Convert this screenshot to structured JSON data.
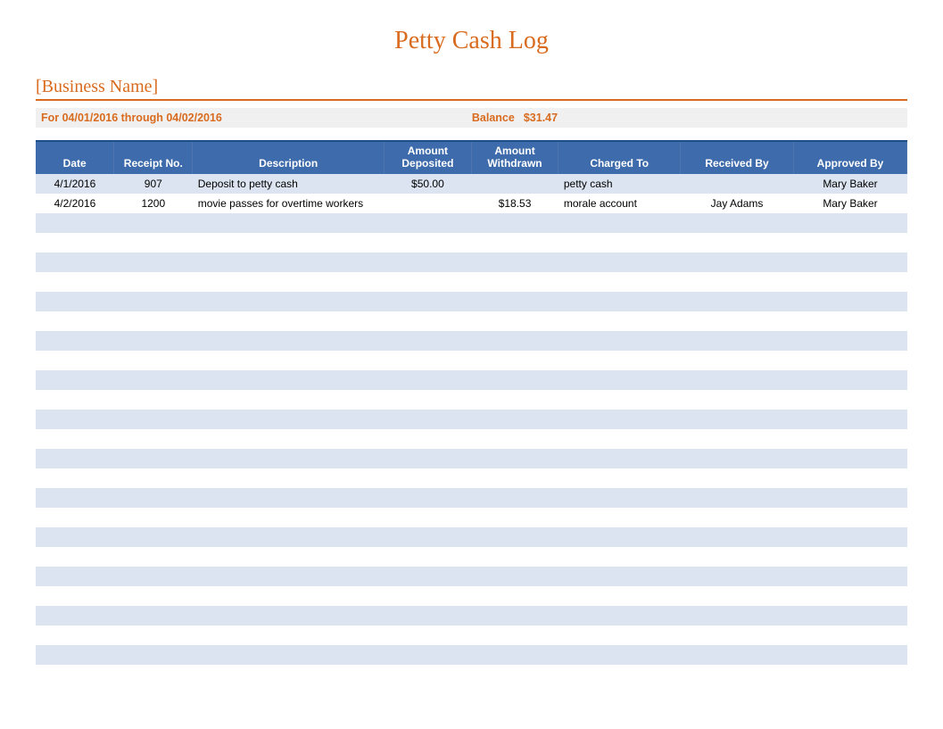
{
  "colors": {
    "orange": "#d96b1f",
    "header_bg": "#3e6bab",
    "header_border_top": "#1f4e89",
    "row_light": "#ffffff",
    "row_alt": "#dbe4f0",
    "period_bg": "#f0f0f0",
    "divider": "#d96b1f"
  },
  "title": "Petty Cash Log",
  "business_name": "[Business Name]",
  "period_text": "For 04/01/2016 through 04/02/2016",
  "balance_label": "Balance",
  "balance_value": "$31.47",
  "columns": {
    "date": "Date",
    "receipt": "Receipt No.",
    "description": "Description",
    "deposited": "Amount Deposited",
    "withdrawn": "Amount Withdrawn",
    "charged": "Charged To",
    "received": "Received By",
    "approved": "Approved By"
  },
  "rows": [
    {
      "date": "4/1/2016",
      "receipt": "907",
      "description": "Deposit to petty cash",
      "deposited": "$50.00",
      "withdrawn": "",
      "charged": "petty cash",
      "received": "",
      "approved": "Mary Baker"
    },
    {
      "date": "4/2/2016",
      "receipt": "1200",
      "description": "movie passes for overtime workers",
      "deposited": "",
      "withdrawn": "$18.53",
      "charged": "morale account",
      "received": "Jay Adams",
      "approved": "Mary Baker"
    },
    {
      "date": "",
      "receipt": "",
      "description": "",
      "deposited": "",
      "withdrawn": "",
      "charged": "",
      "received": "",
      "approved": ""
    },
    {
      "date": "",
      "receipt": "",
      "description": "",
      "deposited": "",
      "withdrawn": "",
      "charged": "",
      "received": "",
      "approved": ""
    },
    {
      "date": "",
      "receipt": "",
      "description": "",
      "deposited": "",
      "withdrawn": "",
      "charged": "",
      "received": "",
      "approved": ""
    },
    {
      "date": "",
      "receipt": "",
      "description": "",
      "deposited": "",
      "withdrawn": "",
      "charged": "",
      "received": "",
      "approved": ""
    },
    {
      "date": "",
      "receipt": "",
      "description": "",
      "deposited": "",
      "withdrawn": "",
      "charged": "",
      "received": "",
      "approved": ""
    },
    {
      "date": "",
      "receipt": "",
      "description": "",
      "deposited": "",
      "withdrawn": "",
      "charged": "",
      "received": "",
      "approved": ""
    },
    {
      "date": "",
      "receipt": "",
      "description": "",
      "deposited": "",
      "withdrawn": "",
      "charged": "",
      "received": "",
      "approved": ""
    },
    {
      "date": "",
      "receipt": "",
      "description": "",
      "deposited": "",
      "withdrawn": "",
      "charged": "",
      "received": "",
      "approved": ""
    },
    {
      "date": "",
      "receipt": "",
      "description": "",
      "deposited": "",
      "withdrawn": "",
      "charged": "",
      "received": "",
      "approved": ""
    },
    {
      "date": "",
      "receipt": "",
      "description": "",
      "deposited": "",
      "withdrawn": "",
      "charged": "",
      "received": "",
      "approved": ""
    },
    {
      "date": "",
      "receipt": "",
      "description": "",
      "deposited": "",
      "withdrawn": "",
      "charged": "",
      "received": "",
      "approved": ""
    },
    {
      "date": "",
      "receipt": "",
      "description": "",
      "deposited": "",
      "withdrawn": "",
      "charged": "",
      "received": "",
      "approved": ""
    },
    {
      "date": "",
      "receipt": "",
      "description": "",
      "deposited": "",
      "withdrawn": "",
      "charged": "",
      "received": "",
      "approved": ""
    },
    {
      "date": "",
      "receipt": "",
      "description": "",
      "deposited": "",
      "withdrawn": "",
      "charged": "",
      "received": "",
      "approved": ""
    },
    {
      "date": "",
      "receipt": "",
      "description": "",
      "deposited": "",
      "withdrawn": "",
      "charged": "",
      "received": "",
      "approved": ""
    },
    {
      "date": "",
      "receipt": "",
      "description": "",
      "deposited": "",
      "withdrawn": "",
      "charged": "",
      "received": "",
      "approved": ""
    },
    {
      "date": "",
      "receipt": "",
      "description": "",
      "deposited": "",
      "withdrawn": "",
      "charged": "",
      "received": "",
      "approved": ""
    },
    {
      "date": "",
      "receipt": "",
      "description": "",
      "deposited": "",
      "withdrawn": "",
      "charged": "",
      "received": "",
      "approved": ""
    },
    {
      "date": "",
      "receipt": "",
      "description": "",
      "deposited": "",
      "withdrawn": "",
      "charged": "",
      "received": "",
      "approved": ""
    },
    {
      "date": "",
      "receipt": "",
      "description": "",
      "deposited": "",
      "withdrawn": "",
      "charged": "",
      "received": "",
      "approved": ""
    },
    {
      "date": "",
      "receipt": "",
      "description": "",
      "deposited": "",
      "withdrawn": "",
      "charged": "",
      "received": "",
      "approved": ""
    },
    {
      "date": "",
      "receipt": "",
      "description": "",
      "deposited": "",
      "withdrawn": "",
      "charged": "",
      "received": "",
      "approved": ""
    },
    {
      "date": "",
      "receipt": "",
      "description": "",
      "deposited": "",
      "withdrawn": "",
      "charged": "",
      "received": "",
      "approved": ""
    },
    {
      "date": "",
      "receipt": "",
      "description": "",
      "deposited": "",
      "withdrawn": "",
      "charged": "",
      "received": "",
      "approved": ""
    }
  ]
}
